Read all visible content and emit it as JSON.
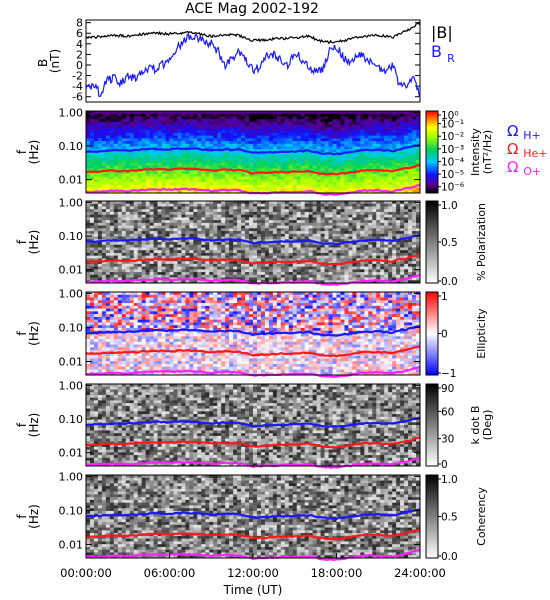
{
  "title": "ACE Mag 2002-192",
  "x_axis": {
    "label": "Time (UT)",
    "range_hours": [
      0,
      24
    ],
    "tick_values": [
      0,
      6,
      12,
      18,
      24
    ],
    "tick_labels": [
      "00:00:00",
      "06:00:00",
      "12:00:00",
      "18:00:00",
      "24:00:00"
    ]
  },
  "legend_text": {
    "b_total": "|B|",
    "b_radial_main": "B",
    "b_radial_sub": "R",
    "omega_symbol": "Ω",
    "omega_h": "H+",
    "omega_he": "He+",
    "omega_o": "O+"
  },
  "colors": {
    "b_total": "#000000",
    "b_radial": "#1a1aff",
    "omega_h": "#1a1aff",
    "omega_he": "#ff1a1a",
    "omega_o": "#ff20ff"
  },
  "freq_axis": {
    "label_main": "f",
    "label_unit": "(Hz)",
    "tick_values": [
      1.0,
      0.1,
      0.01
    ],
    "tick_labels": [
      "1.00",
      "0.10",
      "0.01"
    ],
    "range": [
      0.004,
      1.1
    ],
    "scale": "log"
  },
  "chart_data": [
    {
      "type": "line",
      "panel": "B field",
      "ylabel_main": "B",
      "ylabel_unit": "(nT)",
      "ylim": [
        -7,
        8.5
      ],
      "y_tick_values": [
        -6,
        -4,
        -2,
        0,
        2,
        4,
        6,
        8
      ],
      "y_tick_labels": [
        "-6",
        "-4",
        "-2",
        "0",
        "2",
        "4",
        "6",
        "8"
      ],
      "series": [
        {
          "name": "|B|",
          "x_hours": [
            0,
            1,
            2,
            3,
            4,
            5,
            6,
            7,
            8,
            9,
            10,
            11,
            12,
            13,
            14,
            15,
            16,
            17,
            18,
            19,
            20,
            21,
            22,
            23,
            24
          ],
          "values": [
            5.2,
            5.3,
            5.6,
            5.5,
            5.8,
            6.0,
            5.9,
            6.1,
            6.0,
            5.4,
            5.8,
            5.6,
            4.6,
            4.8,
            5.0,
            5.1,
            5.4,
            4.4,
            4.3,
            4.9,
            5.5,
            5.6,
            5.2,
            6.4,
            8.0
          ]
        },
        {
          "name": "B_R",
          "x_hours": [
            0,
            0.5,
            1,
            1.5,
            2,
            2.5,
            3,
            3.5,
            4,
            4.5,
            5,
            5.5,
            6,
            6.5,
            7,
            7.5,
            8,
            8.5,
            9,
            9.5,
            10,
            10.5,
            11,
            11.5,
            12,
            12.5,
            13,
            13.5,
            14,
            14.5,
            15,
            15.5,
            16,
            16.5,
            17,
            17.5,
            18,
            18.5,
            19,
            19.5,
            20,
            20.5,
            21,
            21.5,
            22,
            22.5,
            23,
            23.5,
            24
          ],
          "values": [
            -4.5,
            -3.5,
            -5.5,
            -3.0,
            -2.5,
            -3.5,
            -2.0,
            -2.5,
            -1.0,
            -0.5,
            -0.8,
            0.0,
            1.5,
            3.0,
            4.5,
            5.5,
            5.2,
            4.5,
            4.0,
            2.5,
            0.0,
            1.0,
            2.5,
            1.0,
            -1.0,
            -0.5,
            1.5,
            2.0,
            1.0,
            0.0,
            2.5,
            1.0,
            0.0,
            -1.5,
            -1.0,
            2.5,
            3.5,
            1.5,
            0.5,
            2.0,
            1.5,
            0.5,
            -0.5,
            -1.0,
            0.0,
            -3.5,
            -4.0,
            -2.5,
            -6.0
          ]
        }
      ]
    },
    {
      "type": "heatmap",
      "panel": "Power spectral density",
      "cbar_label_main": "Intensity",
      "cbar_label_unit": "(nT²/Hz)",
      "cbar_tick_values": [
        0,
        -1,
        -2,
        -3,
        -4,
        -5,
        -6
      ],
      "cbar_tick_labels": [
        "10⁰",
        "10⁻¹",
        "10⁻²",
        "10⁻³",
        "10⁻⁴",
        "10⁻⁵",
        "10⁻⁶"
      ],
      "cbar_range_log10": [
        -6.5,
        0
      ],
      "colormap": "rainbow"
    },
    {
      "type": "heatmap",
      "panel": "Polarization",
      "cbar_label": "% Polarization",
      "cbar_tick_values": [
        1.0,
        0.5,
        0.0
      ],
      "cbar_tick_labels": [
        "1.0",
        "0.5",
        "0.0"
      ],
      "cbar_range": [
        0,
        1
      ],
      "colormap": "grayscale"
    },
    {
      "type": "heatmap",
      "panel": "Ellipticity",
      "cbar_label": "Ellipticity",
      "cbar_tick_values": [
        1,
        0,
        -1
      ],
      "cbar_tick_labels": [
        "1",
        "0",
        "−1"
      ],
      "cbar_range": [
        -1,
        1
      ],
      "colormap": "blue-white-red"
    },
    {
      "type": "heatmap",
      "panel": "Wave normal angle",
      "cbar_label_main": "k dot B",
      "cbar_label_unit": "(Deg)",
      "cbar_tick_values": [
        90,
        60,
        30,
        0
      ],
      "cbar_tick_labels": [
        "90",
        "60",
        "30",
        "0"
      ],
      "cbar_range": [
        0,
        90
      ],
      "colormap": "grayscale"
    },
    {
      "type": "heatmap",
      "panel": "Coherency",
      "cbar_label": "Coherency",
      "cbar_tick_values": [
        1.0,
        0.5,
        0.0
      ],
      "cbar_tick_labels": [
        "1.0",
        "0.5",
        "0.0"
      ],
      "cbar_range": [
        0,
        1
      ],
      "colormap": "grayscale"
    }
  ],
  "gyrofrequency_lines": {
    "x_hours": [
      0,
      1,
      2,
      3,
      4,
      5,
      6,
      7,
      8,
      9,
      10,
      11,
      12,
      13,
      14,
      15,
      16,
      17,
      18,
      19,
      20,
      21,
      22,
      23,
      24
    ],
    "omega_h_hz": [
      0.068,
      0.07,
      0.074,
      0.073,
      0.078,
      0.082,
      0.08,
      0.085,
      0.083,
      0.074,
      0.079,
      0.077,
      0.062,
      0.065,
      0.068,
      0.069,
      0.073,
      0.06,
      0.058,
      0.066,
      0.075,
      0.077,
      0.071,
      0.087,
      0.11
    ],
    "omega_he_hz": [
      0.017,
      0.0175,
      0.0185,
      0.018,
      0.0195,
      0.0205,
      0.02,
      0.021,
      0.0205,
      0.0185,
      0.0198,
      0.019,
      0.0155,
      0.016,
      0.017,
      0.0172,
      0.018,
      0.015,
      0.0145,
      0.0165,
      0.0188,
      0.019,
      0.0178,
      0.0215,
      0.0275
    ],
    "omega_o_hz": [
      0.0043,
      0.0044,
      0.0046,
      0.0045,
      0.0049,
      0.0051,
      0.005,
      0.0052,
      0.0051,
      0.0046,
      0.0049,
      0.0048,
      0.0039,
      0.004,
      0.0042,
      0.0043,
      0.0045,
      0.0037,
      0.0036,
      0.0041,
      0.0047,
      0.0048,
      0.0044,
      0.0054,
      0.0069
    ]
  }
}
